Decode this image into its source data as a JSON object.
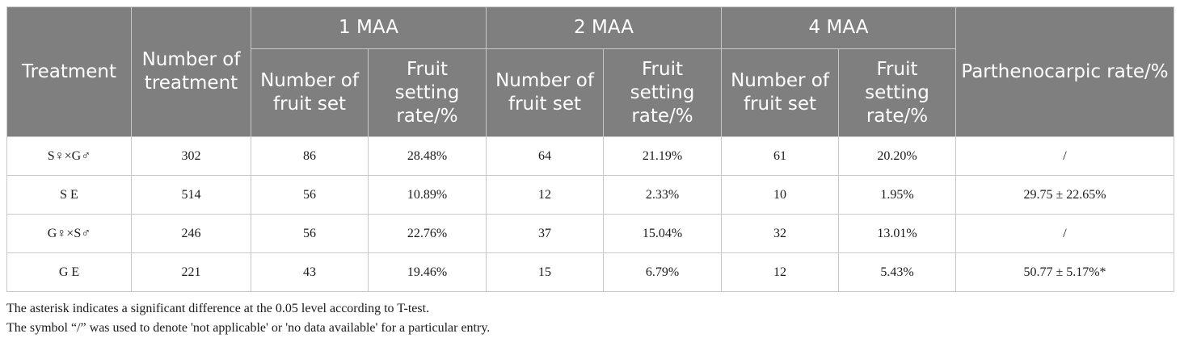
{
  "table": {
    "headers": {
      "treatment": "Treatment",
      "number_of_treatment": "Number of treatment",
      "groups": [
        "1 MAA",
        "2 MAA",
        "4 MAA"
      ],
      "sub_number": "Number of fruit set",
      "sub_rate": "Fruit setting rate/%",
      "parthenocarpic": "Parthenocarpic rate/%"
    },
    "rows": [
      {
        "treatment": "S♀×G♂",
        "n": "302",
        "m1_n": "86",
        "m1_rate": "28.48%",
        "m2_n": "64",
        "m2_rate": "21.19%",
        "m4_n": "61",
        "m4_rate": "20.20%",
        "parthenocarpic": "/"
      },
      {
        "treatment": "S E",
        "n": "514",
        "m1_n": "56",
        "m1_rate": "10.89%",
        "m2_n": "12",
        "m2_rate": "2.33%",
        "m4_n": "10",
        "m4_rate": "1.95%",
        "parthenocarpic": "29.75 ± 22.65%"
      },
      {
        "treatment": "G♀×S♂",
        "n": "246",
        "m1_n": "56",
        "m1_rate": "22.76%",
        "m2_n": "37",
        "m2_rate": "15.04%",
        "m4_n": "32",
        "m4_rate": "13.01%",
        "parthenocarpic": "/"
      },
      {
        "treatment": "G E",
        "n": "221",
        "m1_n": "43",
        "m1_rate": "19.46%",
        "m2_n": "15",
        "m2_rate": "6.79%",
        "m4_n": "12",
        "m4_rate": "5.43%",
        "parthenocarpic": "50.77 ± 5.17%*"
      }
    ]
  },
  "footnotes": [
    "The asterisk indicates a significant difference at the 0.05 level according to T-test.",
    "The symbol “/” was used to denote 'not applicable' or 'no data available' for a particular entry."
  ]
}
